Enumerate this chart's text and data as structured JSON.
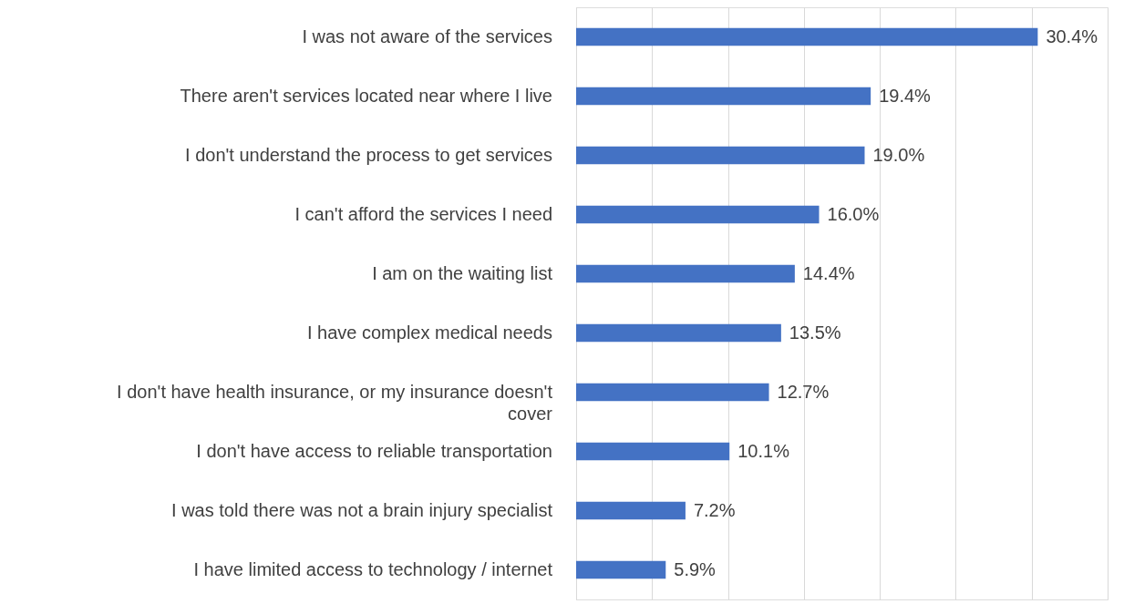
{
  "chart_data": {
    "type": "bar",
    "orientation": "horizontal",
    "categories": [
      "I was not aware of the services",
      "There aren't services located near where I live",
      "I don't understand the process to get services",
      "I can't afford the services I need",
      "I am on the waiting list",
      "I have complex medical needs",
      "I don't have health insurance, or my insurance doesn't cover",
      "I don't have access to reliable transportation",
      "I was told there was not a brain injury specialist",
      "I have limited access to technology / internet"
    ],
    "values": [
      30.4,
      19.4,
      19.0,
      16.0,
      14.4,
      13.5,
      12.7,
      10.1,
      7.2,
      5.9
    ],
    "value_labels": [
      "30.4%",
      "19.4%",
      "19.0%",
      "16.0%",
      "14.4%",
      "13.5%",
      "12.7%",
      "10.1%",
      "7.2%",
      "5.9%"
    ],
    "color": "#4472c4",
    "xlim": [
      0,
      35
    ],
    "xticks": [
      {
        "value": 0,
        "label": null
      },
      {
        "value": 5,
        "label": null
      },
      {
        "value": 10,
        "label": null
      },
      {
        "value": 15,
        "label": null
      },
      {
        "value": 20,
        "label": null
      },
      {
        "value": 25,
        "label": null
      },
      {
        "value": 30,
        "label": null
      },
      {
        "value": 35,
        "label": null
      }
    ],
    "tick_labels": "y",
    "grid": "x"
  }
}
